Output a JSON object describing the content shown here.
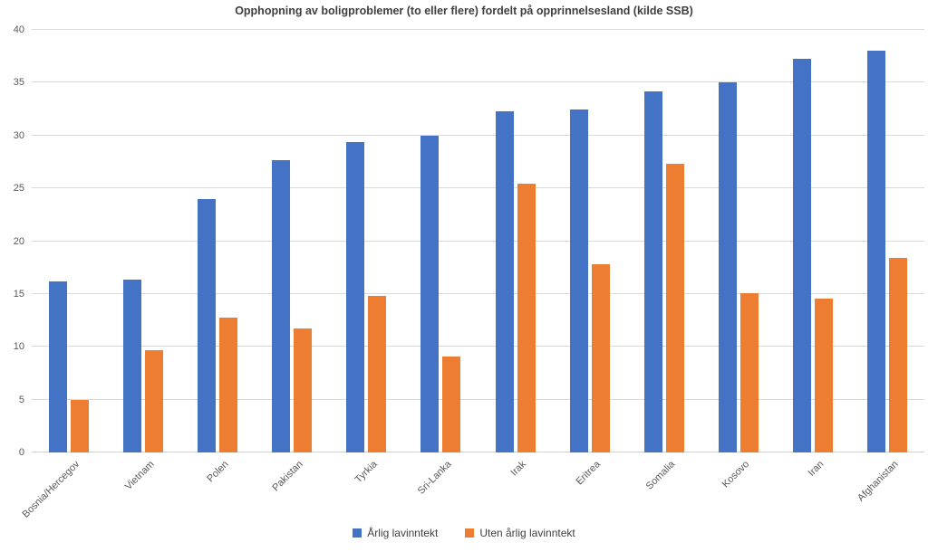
{
  "title": "Opphopning av boligproblemer (to eller flere) fordelt på opprinnelsesland (kilde SSB)",
  "colors": {
    "series_blue": "#4472C4",
    "series_orange": "#ED7D31",
    "gridline": "#D9D9D9",
    "axis_text": "#595959",
    "title_text": "#3F3F3F"
  },
  "chart_data": {
    "type": "bar",
    "title": "Opphopning av boligproblemer (to eller flere) fordelt på opprinnelsesland (kilde SSB)",
    "categories": [
      "Bosnia/Hercegov",
      "Vietnam",
      "Polen",
      "Pakistan",
      "Tyrkia",
      "Sri-Lanka",
      "Irak",
      "Eritrea",
      "Somalia",
      "Kosovo",
      "Iran",
      "Afghanistan"
    ],
    "series": [
      {
        "name": "Årlig lavinntekt",
        "color": "#4472C4",
        "values": [
          16.2,
          16.4,
          24.0,
          27.7,
          29.4,
          30.0,
          32.3,
          32.5,
          34.2,
          35.0,
          37.3,
          38.0
        ]
      },
      {
        "name": "Uten årlig lavinntekt",
        "color": "#ED7D31",
        "values": [
          5.0,
          9.7,
          12.8,
          11.7,
          14.8,
          9.1,
          25.4,
          17.8,
          27.3,
          15.1,
          14.6,
          18.4
        ]
      }
    ],
    "xlabel": "",
    "ylabel": "",
    "ylim": [
      0,
      40
    ],
    "ytick_step": 5,
    "grid": "horizontal",
    "legend_position": "bottom"
  }
}
